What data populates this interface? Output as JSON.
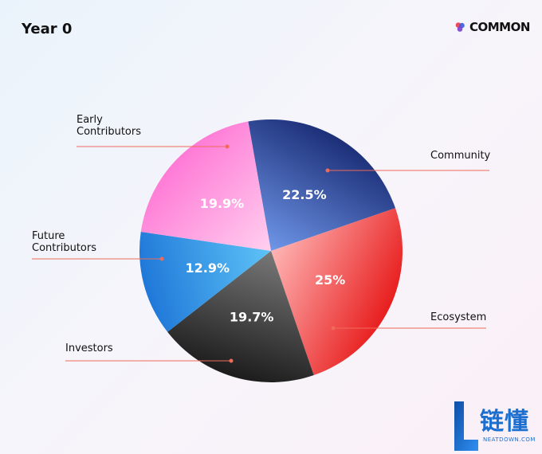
{
  "header": {
    "title": "Year 0",
    "brand_name": "COMMON",
    "brand_colors": [
      "#f04a5a",
      "#3a5bd9",
      "#7a3fd0"
    ]
  },
  "watermark": {
    "text_cn": "链懂",
    "text_en": "NEATDOWN.COM",
    "color": "#1b6fd1"
  },
  "chart_data": {
    "type": "pie",
    "title": "",
    "start_angle_deg": -10,
    "direction": "clockwise",
    "slices": [
      {
        "label": "Community",
        "value": 22.5,
        "value_label": "22.5%",
        "colors": [
          "#1c2f78",
          "#6f96e8"
        ]
      },
      {
        "label": "Ecosystem",
        "value": 25,
        "value_label": "25%",
        "colors": [
          "#e81e1e",
          "#ffb5b5"
        ]
      },
      {
        "label": "Investors",
        "value": 19.7,
        "value_label": "19.7%",
        "colors": [
          "#1c1c1c",
          "#787878"
        ]
      },
      {
        "label": "Future Contributors",
        "label_lines": [
          "Future",
          "Contributors"
        ],
        "value": 12.9,
        "value_label": "12.9%",
        "colors": [
          "#1f78d8",
          "#5ec3f7"
        ]
      },
      {
        "label": "Early Contributors",
        "label_lines": [
          "Early",
          "Contributors"
        ],
        "value": 19.9,
        "value_label": "19.9%",
        "colors": [
          "#ff7ad6",
          "#ffd0ef"
        ]
      }
    ],
    "leader_line_color": "#f06a5a",
    "legend": "callouts"
  }
}
